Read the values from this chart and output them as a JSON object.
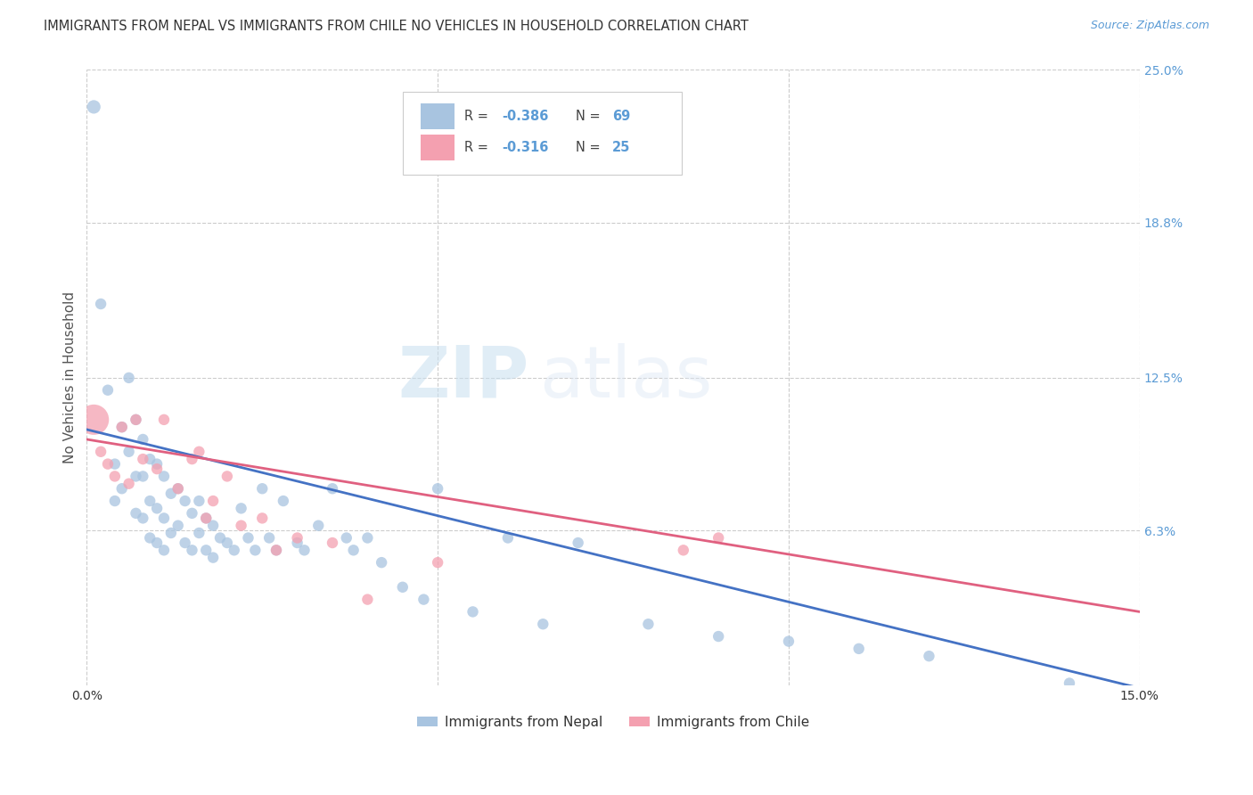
{
  "title": "IMMIGRANTS FROM NEPAL VS IMMIGRANTS FROM CHILE NO VEHICLES IN HOUSEHOLD CORRELATION CHART",
  "source": "Source: ZipAtlas.com",
  "ylabel": "No Vehicles in Household",
  "xlim": [
    0.0,
    0.15
  ],
  "ylim": [
    0.0,
    0.25
  ],
  "ytick_labels_right": [
    "25.0%",
    "18.8%",
    "12.5%",
    "6.3%"
  ],
  "ytick_vals_right": [
    0.25,
    0.188,
    0.125,
    0.063
  ],
  "nepal_color": "#a8c4e0",
  "chile_color": "#f4a0b0",
  "nepal_line_color": "#4472c4",
  "chile_line_color": "#e06080",
  "nepal_R": -0.386,
  "nepal_N": 69,
  "chile_R": -0.316,
  "chile_N": 25,
  "nepal_scatter_x": [
    0.001,
    0.002,
    0.003,
    0.004,
    0.004,
    0.005,
    0.005,
    0.006,
    0.006,
    0.007,
    0.007,
    0.007,
    0.008,
    0.008,
    0.008,
    0.009,
    0.009,
    0.009,
    0.01,
    0.01,
    0.01,
    0.011,
    0.011,
    0.011,
    0.012,
    0.012,
    0.013,
    0.013,
    0.014,
    0.014,
    0.015,
    0.015,
    0.016,
    0.016,
    0.017,
    0.017,
    0.018,
    0.018,
    0.019,
    0.02,
    0.021,
    0.022,
    0.023,
    0.024,
    0.025,
    0.026,
    0.027,
    0.028,
    0.03,
    0.031,
    0.033,
    0.035,
    0.037,
    0.038,
    0.04,
    0.042,
    0.045,
    0.048,
    0.05,
    0.055,
    0.06,
    0.065,
    0.07,
    0.08,
    0.09,
    0.1,
    0.11,
    0.12,
    0.14
  ],
  "nepal_scatter_y": [
    0.235,
    0.155,
    0.12,
    0.09,
    0.075,
    0.105,
    0.08,
    0.125,
    0.095,
    0.108,
    0.085,
    0.07,
    0.1,
    0.085,
    0.068,
    0.092,
    0.075,
    0.06,
    0.09,
    0.072,
    0.058,
    0.085,
    0.068,
    0.055,
    0.078,
    0.062,
    0.08,
    0.065,
    0.075,
    0.058,
    0.07,
    0.055,
    0.075,
    0.062,
    0.068,
    0.055,
    0.065,
    0.052,
    0.06,
    0.058,
    0.055,
    0.072,
    0.06,
    0.055,
    0.08,
    0.06,
    0.055,
    0.075,
    0.058,
    0.055,
    0.065,
    0.08,
    0.06,
    0.055,
    0.06,
    0.05,
    0.04,
    0.035,
    0.08,
    0.03,
    0.06,
    0.025,
    0.058,
    0.025,
    0.02,
    0.018,
    0.015,
    0.012,
    0.001
  ],
  "nepal_scatter_sizes": [
    120,
    80,
    80,
    80,
    80,
    80,
    80,
    80,
    80,
    80,
    80,
    80,
    80,
    80,
    80,
    80,
    80,
    80,
    80,
    80,
    80,
    80,
    80,
    80,
    80,
    80,
    80,
    80,
    80,
    80,
    80,
    80,
    80,
    80,
    80,
    80,
    80,
    80,
    80,
    80,
    80,
    80,
    80,
    80,
    80,
    80,
    80,
    80,
    80,
    80,
    80,
    80,
    80,
    80,
    80,
    80,
    80,
    80,
    80,
    80,
    80,
    80,
    80,
    80,
    80,
    80,
    80,
    80,
    80
  ],
  "chile_scatter_x": [
    0.001,
    0.002,
    0.003,
    0.004,
    0.005,
    0.006,
    0.007,
    0.008,
    0.01,
    0.011,
    0.013,
    0.015,
    0.016,
    0.017,
    0.018,
    0.02,
    0.022,
    0.025,
    0.027,
    0.03,
    0.035,
    0.04,
    0.05,
    0.085,
    0.09
  ],
  "chile_scatter_y": [
    0.108,
    0.095,
    0.09,
    0.085,
    0.105,
    0.082,
    0.108,
    0.092,
    0.088,
    0.108,
    0.08,
    0.092,
    0.095,
    0.068,
    0.075,
    0.085,
    0.065,
    0.068,
    0.055,
    0.06,
    0.058,
    0.035,
    0.05,
    0.055,
    0.06
  ],
  "chile_scatter_sizes": [
    600,
    80,
    80,
    80,
    80,
    80,
    80,
    80,
    80,
    80,
    80,
    80,
    80,
    80,
    80,
    80,
    80,
    80,
    80,
    80,
    80,
    80,
    80,
    80,
    80
  ],
  "nepal_line_x": [
    0.0,
    0.15
  ],
  "nepal_line_y": [
    0.104,
    -0.001
  ],
  "chile_line_x": [
    0.0,
    0.15
  ],
  "chile_line_y": [
    0.1,
    0.03
  ],
  "watermark_zip": "ZIP",
  "watermark_atlas": "atlas",
  "legend_nepal": "Immigrants from Nepal",
  "legend_chile": "Immigrants from Chile",
  "background_color": "#ffffff",
  "grid_color": "#cccccc",
  "title_color": "#333333",
  "source_color": "#5b9bd5",
  "rn_color": "#5b9bd5",
  "label_color": "#555555"
}
